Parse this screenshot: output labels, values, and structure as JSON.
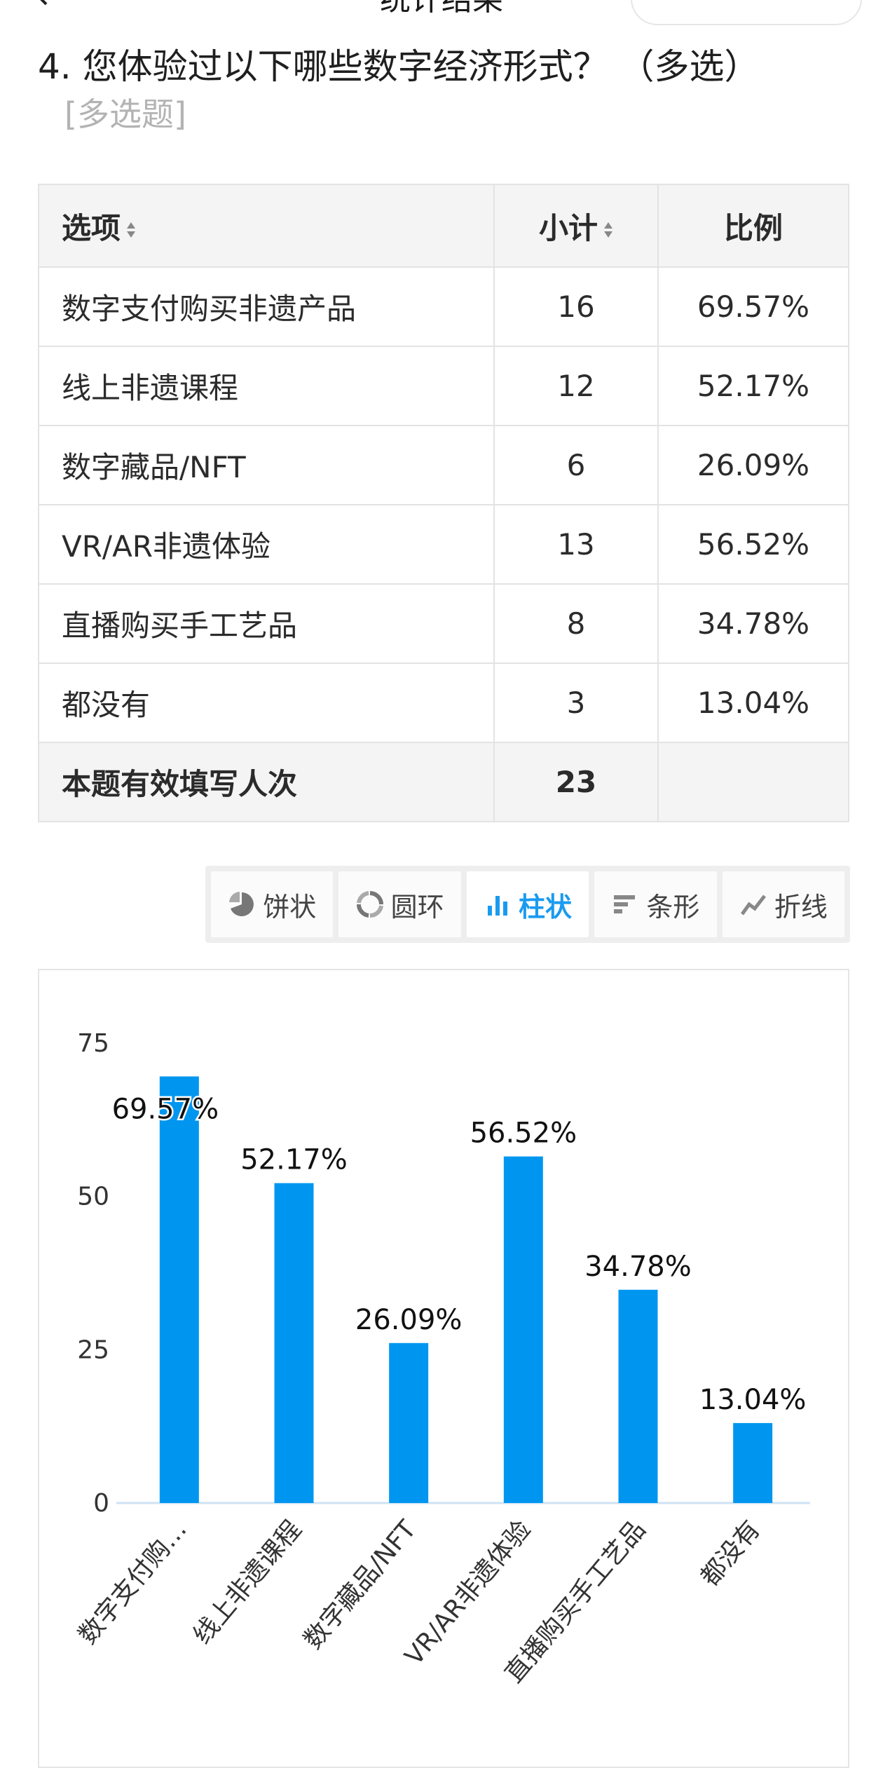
{
  "header": {
    "title": "统计结果"
  },
  "question": {
    "title": "4. 您体验过以下哪些数字经济形式？ （多选）",
    "type": "[多选题]"
  },
  "table": {
    "headers": {
      "option": "选项",
      "count": "小计",
      "percent": "比例"
    },
    "rows": [
      {
        "option": "数字支付购买非遗产品",
        "count": "16",
        "percent": "69.57%"
      },
      {
        "option": "线上非遗课程",
        "count": "12",
        "percent": "52.17%"
      },
      {
        "option": "数字藏品/NFT",
        "count": "6",
        "percent": "26.09%"
      },
      {
        "option": "VR/AR非遗体验",
        "count": "13",
        "percent": "56.52%"
      },
      {
        "option": "直播购买手工艺品",
        "count": "8",
        "percent": "34.78%"
      },
      {
        "option": "都没有",
        "count": "3",
        "percent": "13.04%"
      }
    ],
    "total": {
      "label": "本题有效填写人次",
      "count": "23"
    }
  },
  "chart_tabs": [
    {
      "label": "饼状",
      "icon": "pie-icon",
      "active": false
    },
    {
      "label": "圆环",
      "icon": "ring-icon",
      "active": false
    },
    {
      "label": "柱状",
      "icon": "bar-icon",
      "active": true
    },
    {
      "label": "条形",
      "icon": "hbar-icon",
      "active": false
    },
    {
      "label": "折线",
      "icon": "line-icon",
      "active": false
    }
  ],
  "colors": {
    "bar": "#0096f0",
    "accent": "#1a9bf0",
    "axis": "#cfe3f5"
  },
  "chart_data": {
    "type": "bar",
    "categories": [
      "数字支付购…",
      "线上非遗课程",
      "数字藏品/NFT",
      "VR/AR非遗体验",
      "直播购买手工艺品",
      "都没有"
    ],
    "values": [
      69.57,
      52.17,
      26.09,
      56.52,
      34.78,
      13.04
    ],
    "data_labels": [
      "69.57%",
      "52.17%",
      "26.09%",
      "56.52%",
      "34.78%",
      "13.04%"
    ],
    "yticks": [
      0,
      25,
      50,
      75
    ],
    "ylim": [
      0,
      75
    ],
    "title": "",
    "xlabel": "",
    "ylabel": "",
    "grid": false
  }
}
